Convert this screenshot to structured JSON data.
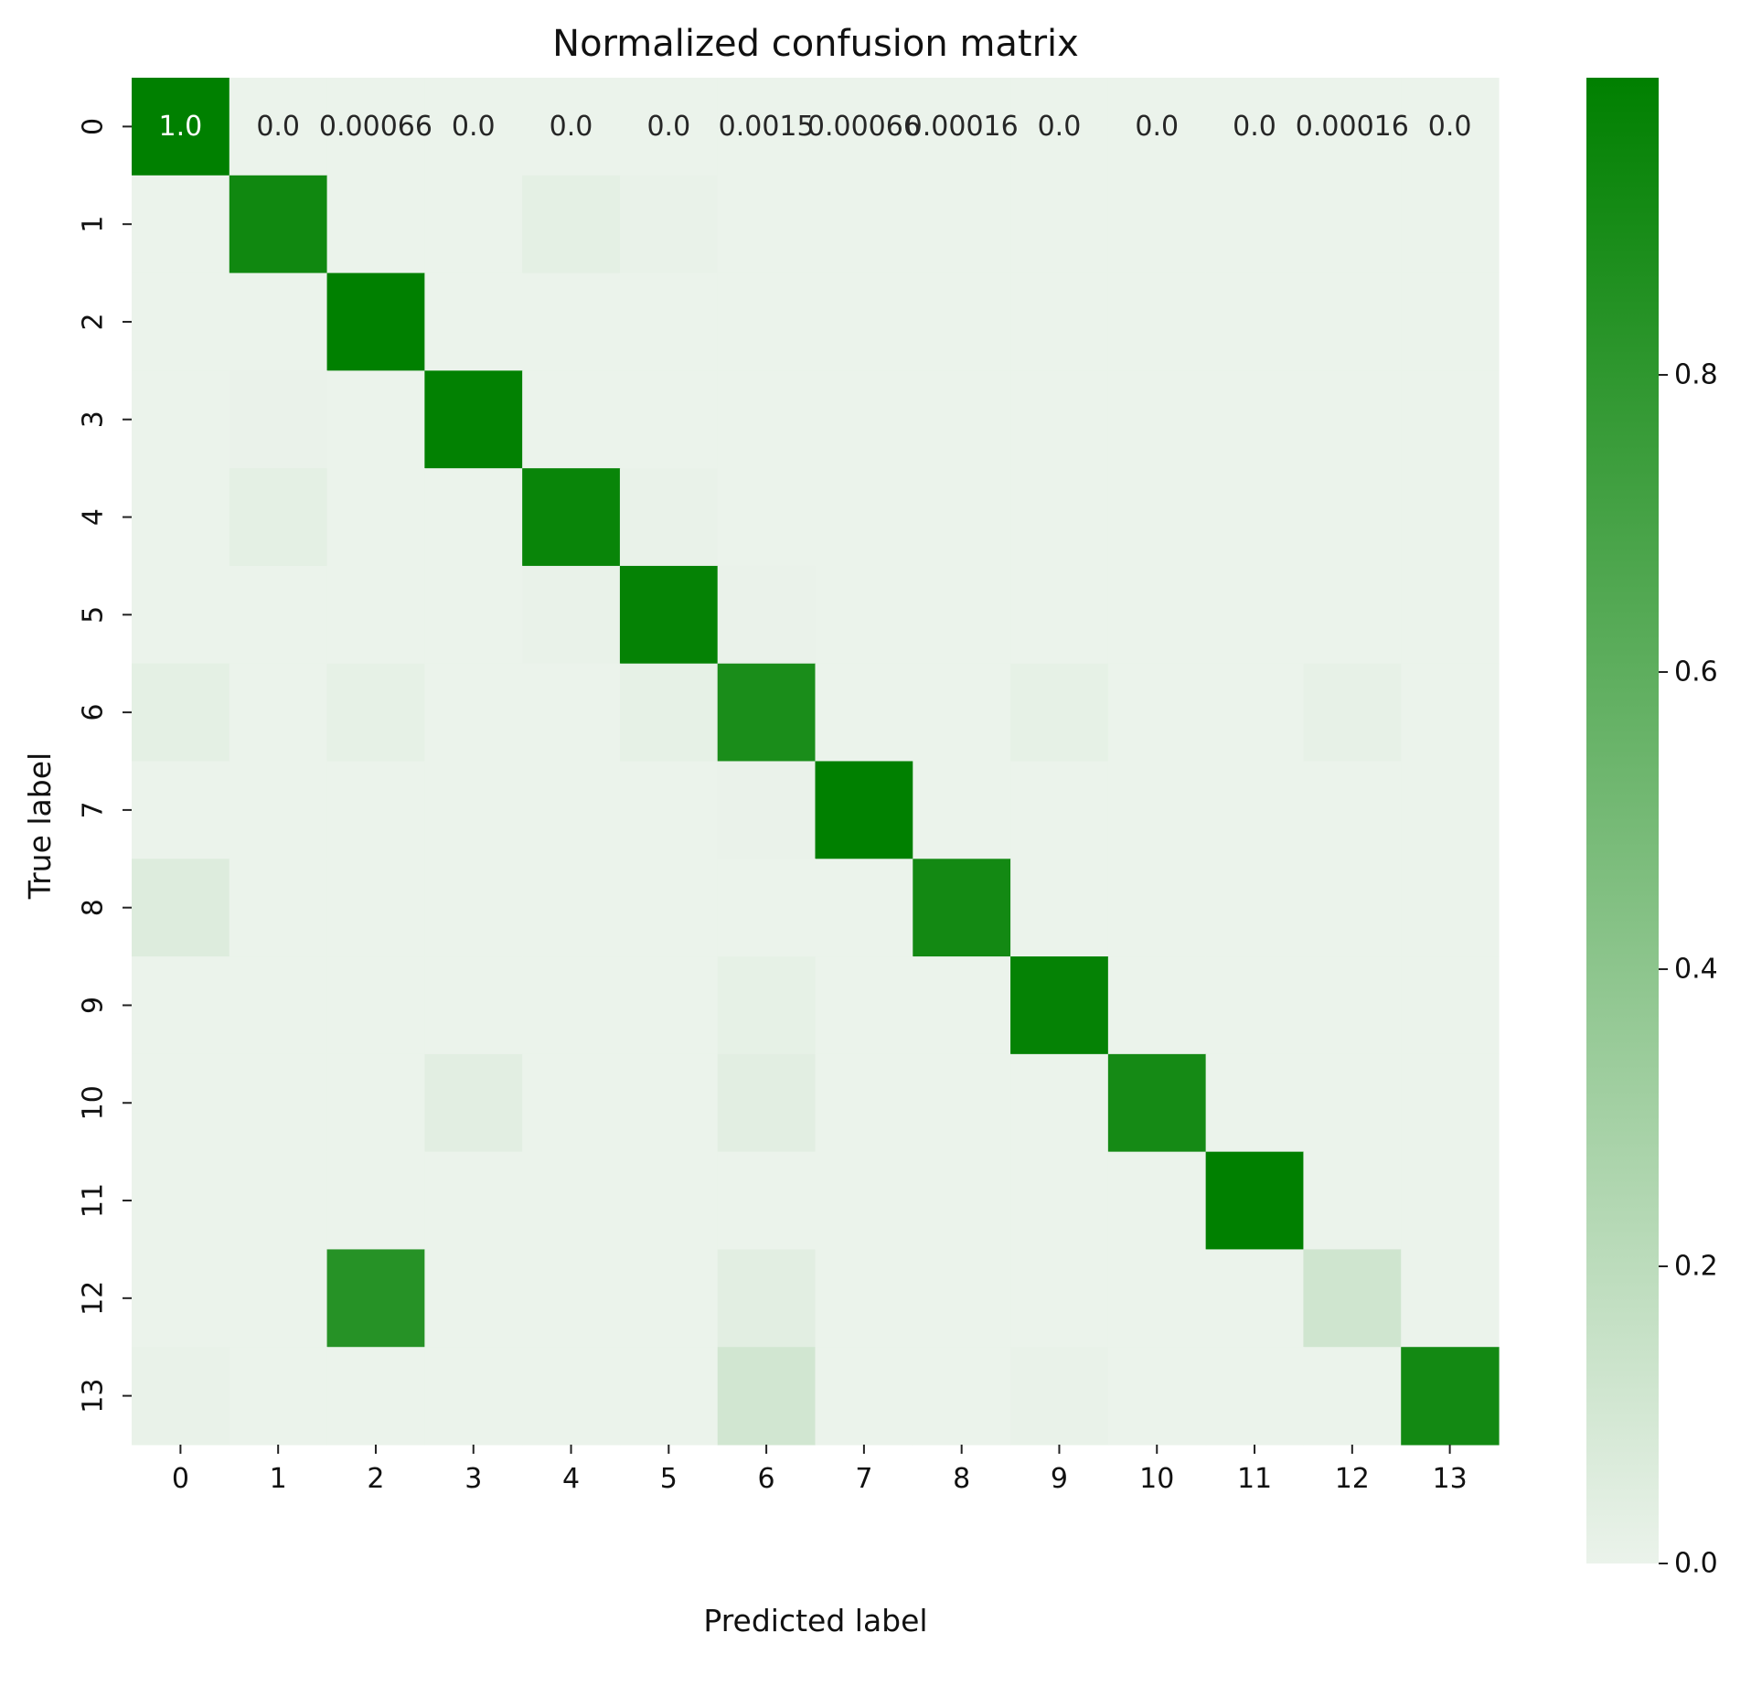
{
  "chart_data": {
    "type": "heatmap",
    "title": "Normalized confusion matrix",
    "xlabel": "Predicted label",
    "ylabel": "True label",
    "x_tick_labels": [
      "0",
      "1",
      "2",
      "3",
      "4",
      "5",
      "6",
      "7",
      "8",
      "9",
      "10",
      "11",
      "12",
      "13"
    ],
    "y_tick_labels": [
      "0",
      "1",
      "2",
      "3",
      "4",
      "5",
      "6",
      "7",
      "8",
      "9",
      "10",
      "11",
      "12",
      "13"
    ],
    "values": [
      [
        1.0,
        0.0,
        0.00066,
        0.0,
        0.0,
        0.0,
        0.0015,
        0.00066,
        0.00016,
        0.0,
        0.0,
        0.0,
        0.00016,
        0.0
      ],
      [
        0.0,
        0.93,
        0.0,
        0.0,
        0.03,
        0.01,
        0.0,
        0.0,
        0.0,
        0.0,
        0.0,
        0.0,
        0.0,
        0.0
      ],
      [
        0.0,
        0.0,
        1.0,
        0.0,
        0.0,
        0.0,
        0.0,
        0.0,
        0.0,
        0.0,
        0.0,
        0.0,
        0.0,
        0.0
      ],
      [
        0.0,
        0.005,
        0.0,
        0.99,
        0.0,
        0.0,
        0.0,
        0.0,
        0.0,
        0.0,
        0.0,
        0.0,
        0.0,
        0.0
      ],
      [
        0.0,
        0.03,
        0.0,
        0.0,
        0.96,
        0.01,
        0.0,
        0.0,
        0.0,
        0.0,
        0.0,
        0.0,
        0.0,
        0.0
      ],
      [
        0.0,
        0.0,
        0.0,
        0.0,
        0.01,
        0.98,
        0.005,
        0.0,
        0.0,
        0.0,
        0.0,
        0.0,
        0.0,
        0.0
      ],
      [
        0.03,
        0.0,
        0.02,
        0.0,
        0.0,
        0.02,
        0.89,
        0.0,
        0.0,
        0.02,
        0.0,
        0.0,
        0.015,
        0.0
      ],
      [
        0.0,
        0.0,
        0.0,
        0.0,
        0.0,
        0.0,
        0.005,
        1.0,
        0.0,
        0.0,
        0.0,
        0.0,
        0.0,
        0.0
      ],
      [
        0.06,
        0.0,
        0.0,
        0.0,
        0.0,
        0.0,
        0.0,
        0.0,
        0.92,
        0.0,
        0.0,
        0.0,
        0.0,
        0.0
      ],
      [
        0.0,
        0.0,
        0.0,
        0.0,
        0.0,
        0.0,
        0.02,
        0.0,
        0.0,
        0.98,
        0.0,
        0.0,
        0.0,
        0.0
      ],
      [
        0.0,
        0.0,
        0.0,
        0.04,
        0.0,
        0.0,
        0.04,
        0.0,
        0.0,
        0.0,
        0.91,
        0.0,
        0.0,
        0.0
      ],
      [
        0.0,
        0.0,
        0.0,
        0.0,
        0.0,
        0.0,
        0.0,
        0.0,
        0.0,
        0.0,
        0.0,
        1.0,
        0.0,
        0.0
      ],
      [
        0.0,
        0.0,
        0.84,
        0.0,
        0.0,
        0.0,
        0.04,
        0.0,
        0.0,
        0.0,
        0.0,
        0.0,
        0.12,
        0.0
      ],
      [
        0.01,
        0.0,
        0.0,
        0.0,
        0.0,
        0.0,
        0.11,
        0.0,
        0.0,
        0.01,
        0.0,
        0.0,
        0.0,
        0.92
      ]
    ],
    "annotations_row0": [
      "1.0",
      "0.0",
      "0.00066",
      "0.0",
      "0.0",
      "0.0",
      "0.0015",
      "0.00066",
      "0.00016",
      "0.0",
      "0.0",
      "0.0",
      "0.00016",
      "0.0"
    ],
    "colormap": {
      "low": "#ebf3eb",
      "high": "#008000"
    },
    "colorbar": {
      "range": [
        0.0,
        1.0
      ],
      "ticks": [
        0.0,
        0.2,
        0.4,
        0.6,
        0.8
      ],
      "tick_labels": [
        "0.0",
        "0.2",
        "0.4",
        "0.6",
        "0.8"
      ],
      "position": "right"
    },
    "grid": false
  }
}
